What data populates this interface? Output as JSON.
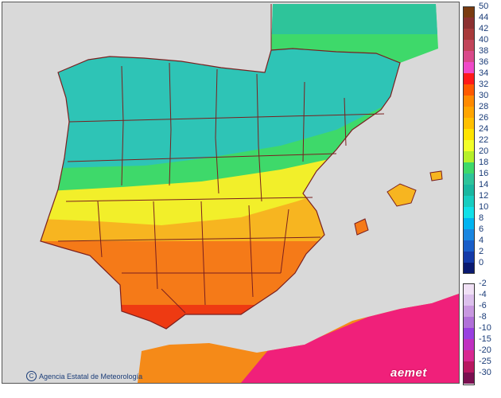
{
  "map": {
    "credit": "Agencia Estatal de Meteorología",
    "logo": "aemet",
    "colors": {
      "sea": "#d9d9d9",
      "border": "#7a1f1f",
      "zone_cool": "#2ec4b6",
      "zone_green": "#3ed96a",
      "zone_yellow": "#f2ef2a",
      "zone_warm": "#f7b520",
      "zone_hot": "#f57a18",
      "zone_hottest": "#ee3a12",
      "africa_hot": "#f0207a",
      "africa_warm": "#f58a18"
    }
  },
  "legend": {
    "positive": [
      {
        "label": "50",
        "color": "#7a3b10"
      },
      {
        "label": "44",
        "color": "#8c3030"
      },
      {
        "label": "42",
        "color": "#a83a3a"
      },
      {
        "label": "40",
        "color": "#c2455a"
      },
      {
        "label": "38",
        "color": "#d94a8a"
      },
      {
        "label": "36",
        "color": "#f04ac8"
      },
      {
        "label": "34",
        "color": "#ff1a1a"
      },
      {
        "label": "32",
        "color": "#ff5a00"
      },
      {
        "label": "30",
        "color": "#ff8a00"
      },
      {
        "label": "28",
        "color": "#ffa500"
      },
      {
        "label": "26",
        "color": "#ffc000"
      },
      {
        "label": "24",
        "color": "#ffe400"
      },
      {
        "label": "22",
        "color": "#f2ff2a"
      },
      {
        "label": "20",
        "color": "#b6f02a"
      },
      {
        "label": "18",
        "color": "#3ed96a"
      },
      {
        "label": "16",
        "color": "#2ec49a"
      },
      {
        "label": "14",
        "color": "#1ab7a0"
      },
      {
        "label": "12",
        "color": "#18cdc0"
      },
      {
        "label": "10",
        "color": "#12e0e8"
      },
      {
        "label": "8",
        "color": "#00b4f0"
      },
      {
        "label": "6",
        "color": "#1a86e0"
      },
      {
        "label": "4",
        "color": "#1a5ec8"
      },
      {
        "label": "2",
        "color": "#143aa8"
      },
      {
        "label": "0",
        "color": "#0a1a70"
      }
    ],
    "negative": [
      {
        "label": "-2",
        "color": "#f0e0f5"
      },
      {
        "label": "-4",
        "color": "#dcc0ec"
      },
      {
        "label": "-6",
        "color": "#c898e0"
      },
      {
        "label": "-8",
        "color": "#b070d8"
      },
      {
        "label": "-10",
        "color": "#9840e0"
      },
      {
        "label": "-15",
        "color": "#c030c0"
      },
      {
        "label": "-20",
        "color": "#d82890"
      },
      {
        "label": "-25",
        "color": "#b81860"
      },
      {
        "label": "-30",
        "color": "#7a1050"
      }
    ]
  }
}
